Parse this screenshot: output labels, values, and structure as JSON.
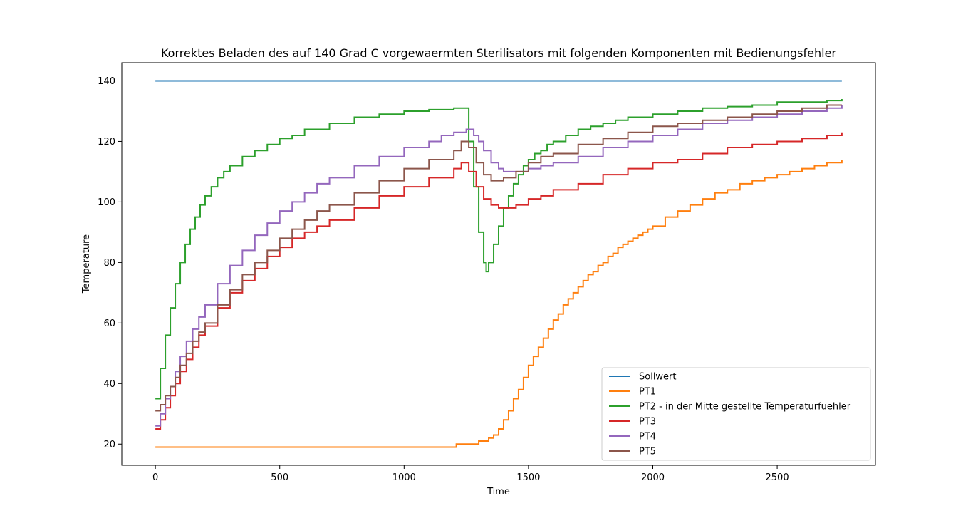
{
  "chart_data": {
    "type": "line",
    "title": "Korrektes Beladen des auf 140 Grad C vorgewaermten Sterilisators mit folgenden Komponenten mit Bedienungsfehler",
    "xlabel": "Time",
    "ylabel": "Temperature",
    "xlim": [
      -135,
      2895
    ],
    "ylim": [
      13,
      146
    ],
    "xticks": [
      0,
      500,
      1000,
      1500,
      2000,
      2500
    ],
    "yticks": [
      20,
      40,
      60,
      80,
      100,
      120,
      140
    ],
    "grid": false,
    "legend_position": "lower right",
    "series": [
      {
        "name": "Sollwert",
        "color": "#1f77b4",
        "x": [
          0,
          2760
        ],
        "y": [
          140,
          140
        ]
      },
      {
        "name": "PT1",
        "color": "#ff7f0e",
        "x": [
          0,
          1200,
          1210,
          1280,
          1300,
          1320,
          1340,
          1360,
          1380,
          1400,
          1420,
          1440,
          1460,
          1480,
          1500,
          1520,
          1540,
          1560,
          1580,
          1600,
          1620,
          1640,
          1660,
          1680,
          1700,
          1720,
          1740,
          1760,
          1780,
          1800,
          1820,
          1840,
          1860,
          1880,
          1900,
          1920,
          1940,
          1960,
          1980,
          2000,
          2050,
          2100,
          2150,
          2200,
          2250,
          2300,
          2350,
          2400,
          2450,
          2500,
          2550,
          2600,
          2650,
          2700,
          2760
        ],
        "y": [
          19,
          19,
          20,
          20,
          21,
          21,
          22,
          23,
          25,
          28,
          31,
          35,
          38,
          42,
          46,
          49,
          52,
          55,
          58,
          61,
          63,
          66,
          68,
          70,
          72,
          74,
          76,
          77,
          79,
          80,
          82,
          83,
          85,
          86,
          87,
          88,
          89,
          90,
          91,
          92,
          95,
          97,
          99,
          101,
          103,
          104,
          106,
          107,
          108,
          109,
          110,
          111,
          112,
          113,
          114
        ]
      },
      {
        "name": "PT2 - in der Mitte gestellte Temperaturfuehler",
        "color": "#2ca02c",
        "x": [
          0,
          20,
          40,
          60,
          80,
          100,
          120,
          140,
          160,
          180,
          200,
          225,
          250,
          275,
          300,
          350,
          400,
          450,
          500,
          550,
          600,
          700,
          800,
          900,
          1000,
          1100,
          1200,
          1240,
          1260,
          1280,
          1300,
          1320,
          1330,
          1340,
          1360,
          1380,
          1400,
          1420,
          1440,
          1460,
          1480,
          1500,
          1525,
          1550,
          1575,
          1600,
          1650,
          1700,
          1750,
          1800,
          1850,
          1900,
          2000,
          2100,
          2200,
          2300,
          2400,
          2500,
          2600,
          2700,
          2760
        ],
        "y": [
          35,
          45,
          56,
          65,
          73,
          80,
          86,
          91,
          95,
          99,
          102,
          105,
          108,
          110,
          112,
          115,
          117,
          119,
          121,
          122,
          124,
          126,
          128,
          129,
          130,
          130.5,
          131,
          131,
          120,
          105,
          90,
          80,
          77,
          80,
          86,
          92,
          98,
          102,
          106,
          109,
          112,
          114,
          116,
          117,
          119,
          120,
          122,
          124,
          125,
          126,
          127,
          128,
          129,
          130,
          131,
          131.5,
          132,
          133,
          133,
          133.5,
          134
        ]
      },
      {
        "name": "PT3",
        "color": "#d62728",
        "x": [
          0,
          20,
          40,
          60,
          80,
          100,
          125,
          150,
          175,
          200,
          250,
          300,
          350,
          400,
          450,
          500,
          550,
          600,
          650,
          700,
          800,
          900,
          1000,
          1100,
          1200,
          1230,
          1260,
          1290,
          1320,
          1350,
          1380,
          1400,
          1450,
          1500,
          1550,
          1600,
          1700,
          1800,
          1900,
          2000,
          2100,
          2200,
          2300,
          2400,
          2500,
          2600,
          2700,
          2760
        ],
        "y": [
          25,
          28,
          32,
          36,
          40,
          44,
          48,
          52,
          56,
          59,
          65,
          70,
          74,
          78,
          82,
          85,
          88,
          90,
          92,
          94,
          98,
          102,
          105,
          108,
          111,
          113,
          110,
          105,
          101,
          99,
          98,
          98,
          99,
          101,
          102,
          104,
          106,
          109,
          111,
          113,
          114,
          116,
          118,
          119,
          120,
          121,
          122,
          123
        ]
      },
      {
        "name": "PT4",
        "color": "#9467bd",
        "x": [
          0,
          20,
          40,
          60,
          80,
          100,
          125,
          150,
          175,
          200,
          250,
          300,
          350,
          400,
          450,
          500,
          550,
          600,
          650,
          700,
          800,
          900,
          1000,
          1100,
          1150,
          1200,
          1250,
          1280,
          1300,
          1320,
          1350,
          1380,
          1400,
          1450,
          1500,
          1550,
          1600,
          1700,
          1800,
          1900,
          2000,
          2100,
          2200,
          2300,
          2400,
          2500,
          2600,
          2700,
          2760
        ],
        "y": [
          26,
          30,
          35,
          39,
          44,
          49,
          54,
          58,
          62,
          66,
          73,
          79,
          84,
          89,
          93,
          97,
          100,
          103,
          106,
          108,
          112,
          115,
          118,
          120,
          122,
          123,
          124,
          122,
          120,
          117,
          113,
          111,
          110,
          110,
          111,
          112,
          113,
          115,
          118,
          120,
          122,
          124,
          126,
          127,
          128,
          129,
          130,
          131,
          132
        ]
      },
      {
        "name": "PT5",
        "color": "#8c564b",
        "x": [
          0,
          20,
          40,
          60,
          80,
          100,
          125,
          150,
          175,
          200,
          250,
          300,
          350,
          400,
          450,
          500,
          550,
          600,
          650,
          700,
          800,
          900,
          1000,
          1100,
          1200,
          1230,
          1260,
          1290,
          1320,
          1350,
          1380,
          1400,
          1450,
          1500,
          1550,
          1600,
          1700,
          1800,
          1900,
          2000,
          2100,
          2200,
          2300,
          2400,
          2500,
          2600,
          2700,
          2760
        ],
        "y": [
          31,
          33,
          36,
          39,
          42,
          46,
          50,
          54,
          57,
          60,
          66,
          71,
          76,
          80,
          84,
          88,
          91,
          94,
          97,
          99,
          103,
          107,
          111,
          114,
          117,
          120,
          118,
          113,
          109,
          107,
          107,
          108,
          110,
          113,
          115,
          116,
          119,
          121,
          123,
          125,
          126,
          127,
          128,
          129,
          130,
          131,
          132,
          132
        ]
      }
    ]
  }
}
